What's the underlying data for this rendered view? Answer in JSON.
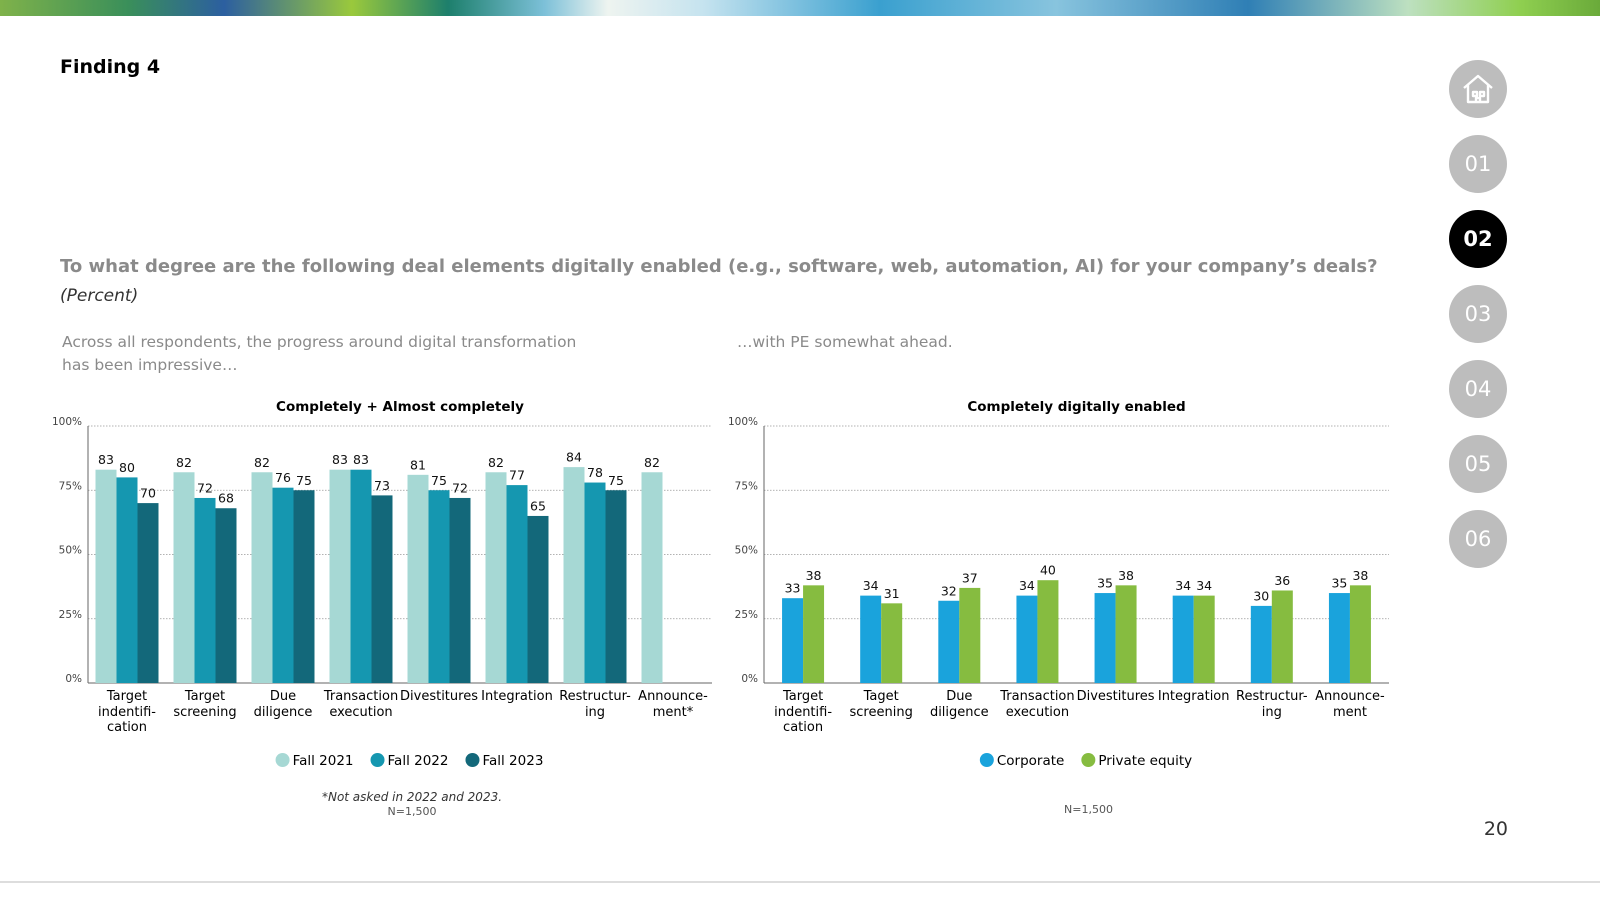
{
  "title": "Finding 4",
  "question": "To what degree are the following deal elements digitally enabled (e.g., software, web, automation, AI) for your company’s deals?",
  "unit": "(Percent)",
  "captions": [
    "Across all respondents, the progress around digital transformation\nhas been impressive…",
    "…with PE somewhat ahead."
  ],
  "nav": [
    "01",
    "02",
    "03",
    "04",
    "05",
    "06"
  ],
  "nav_active": "02",
  "page_number": "20",
  "chart_data": [
    {
      "type": "bar",
      "title": "Completely + Almost completely",
      "categories": [
        "Target\nindentifi-\ncation",
        "Target\nscreening",
        "Due\ndiligence",
        "Transaction\nexecution",
        "Divestitures",
        "Integration",
        "Restructur-\ning",
        "Announce-\nment*"
      ],
      "series": [
        {
          "name": "Fall 2021",
          "color": "#a6d8d4",
          "values": [
            83,
            82,
            82,
            83,
            81,
            82,
            84,
            82
          ]
        },
        {
          "name": "Fall 2022",
          "color": "#1597b0",
          "values": [
            80,
            72,
            76,
            83,
            75,
            77,
            78,
            null
          ]
        },
        {
          "name": "Fall 2023",
          "color": "#13687a",
          "values": [
            70,
            68,
            75,
            73,
            72,
            65,
            75,
            null
          ]
        }
      ],
      "ylim": [
        0,
        100
      ],
      "yticks": [
        {
          "value": 0,
          "label": "0%"
        },
        {
          "value": 25,
          "label": "25%"
        },
        {
          "value": 50,
          "label": "50%"
        },
        {
          "value": 75,
          "label": "75%"
        },
        {
          "value": 100,
          "label": "100%"
        }
      ],
      "grid": true,
      "note": "*Not asked in 2022 and 2023.",
      "sample": "N=1,500"
    },
    {
      "type": "bar",
      "title": "Completely digitally enabled",
      "categories": [
        "Target\nindentifi-\ncation",
        "Taget\nscreening",
        "Due\ndiligence",
        "Transaction\nexecution",
        "Divestitures",
        "Integration",
        "Restructur-\ning",
        "Announce-\nment"
      ],
      "series": [
        {
          "name": "Corporate",
          "color": "#1aa3dc",
          "values": [
            33,
            34,
            32,
            34,
            35,
            34,
            30,
            35
          ]
        },
        {
          "name": "Private equity",
          "color": "#86bc40",
          "values": [
            38,
            31,
            37,
            40,
            38,
            34,
            36,
            38
          ]
        }
      ],
      "ylim": [
        0,
        100
      ],
      "yticks": [
        {
          "value": 0,
          "label": "0%"
        },
        {
          "value": 25,
          "label": "25%"
        },
        {
          "value": 50,
          "label": "50%"
        },
        {
          "value": 75,
          "label": "75%"
        },
        {
          "value": 100,
          "label": "100%"
        }
      ],
      "grid": true,
      "sample": "N=1,500"
    }
  ]
}
